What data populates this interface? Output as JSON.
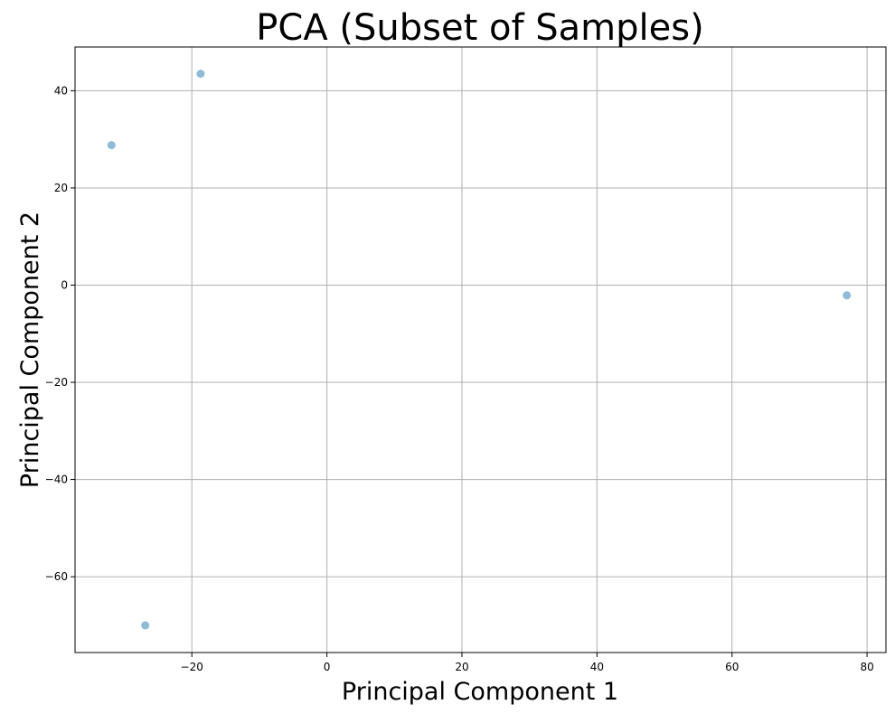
{
  "chart_data": {
    "type": "scatter",
    "title": "PCA (Subset of Samples)",
    "xlabel": "Principal Component 1",
    "ylabel": "Principal Component 2",
    "xlim": [
      -37.3,
      82.8
    ],
    "ylim": [
      -75.6,
      49.0
    ],
    "xticks": [
      -20,
      0,
      20,
      40,
      60,
      80
    ],
    "yticks": [
      -60,
      -40,
      -20,
      0,
      20,
      40
    ],
    "grid": true,
    "marker_color": "#1f77b4",
    "marker_opacity": 0.5,
    "series": [
      {
        "points": [
          {
            "x": -18.7,
            "y": 43.5
          },
          {
            "x": -31.9,
            "y": 28.8
          },
          {
            "x": 77.0,
            "y": -2.1
          },
          {
            "x": -26.9,
            "y": -70.0
          }
        ]
      }
    ]
  }
}
